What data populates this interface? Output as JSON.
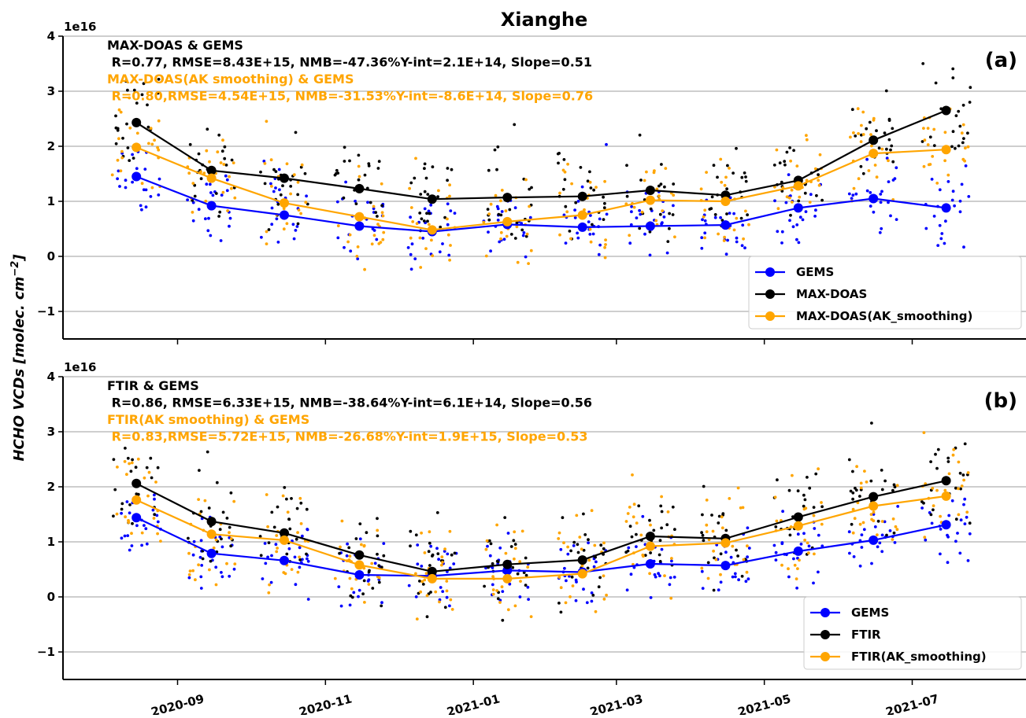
{
  "figure": {
    "title": "Xianghe",
    "ylabel_main": "HCHO VCDs [molec. cm",
    "ylabel_sup": "−2",
    "ylabel_end": "]",
    "exponent_label": "1e16"
  },
  "chart_data": [
    {
      "type": "line",
      "panel_label": "(a)",
      "ylim": [
        -1.5,
        4
      ],
      "yticks": [
        -1,
        0,
        1,
        2,
        3,
        4
      ],
      "ytick_labels": [
        "−1",
        "0",
        "1",
        "2",
        "3",
        "4"
      ],
      "grid": "horizontal",
      "legend_position": "lower-right",
      "annotations": [
        {
          "text": "MAX-DOAS & GEMS",
          "color": "#000000"
        },
        {
          "text": " R=0.77, RMSE=8.43E+15, NMB=-47.36%Y-int=2.1E+14, Slope=0.51",
          "color": "#000000"
        },
        {
          "text": "MAX-DOAS(AK smoothing) & GEMS",
          "color": "#FFA500"
        },
        {
          "text": " R=0.80,RMSE=4.54E+15, NMB=-31.53%Y-int=-8.6E+14, Slope=0.76",
          "color": "#FFA500"
        }
      ],
      "x": [
        "2020-08-15",
        "2020-09-15",
        "2020-10-15",
        "2020-11-15",
        "2020-12-15",
        "2021-01-15",
        "2021-02-15",
        "2021-03-15",
        "2021-04-15",
        "2021-05-15",
        "2021-06-15",
        "2021-07-15"
      ],
      "series": [
        {
          "name": "GEMS",
          "color": "#0000FF",
          "values": [
            1.45,
            0.92,
            0.75,
            0.55,
            0.45,
            0.58,
            0.53,
            0.55,
            0.57,
            0.88,
            1.05,
            0.88
          ]
        },
        {
          "name": "MAX-DOAS",
          "color": "#000000",
          "values": [
            2.43,
            1.56,
            1.42,
            1.23,
            1.04,
            1.07,
            1.09,
            1.2,
            1.11,
            1.38,
            2.11,
            2.65
          ]
        },
        {
          "name": "MAX-DOAS(AK_smoothing)",
          "color": "#FFA500",
          "values": [
            1.98,
            1.42,
            0.97,
            0.72,
            0.48,
            0.63,
            0.75,
            1.02,
            1.0,
            1.28,
            1.87,
            1.94
          ]
        }
      ]
    },
    {
      "type": "line",
      "panel_label": "(b)",
      "ylim": [
        -1.5,
        4
      ],
      "yticks": [
        -1,
        0,
        1,
        2,
        3,
        4
      ],
      "ytick_labels": [
        "−1",
        "0",
        "1",
        "2",
        "3",
        "4"
      ],
      "grid": "horizontal",
      "legend_position": "lower-right",
      "annotations": [
        {
          "text": "FTIR & GEMS",
          "color": "#000000"
        },
        {
          "text": " R=0.86, RMSE=6.33E+15, NMB=-38.64%Y-int=6.1E+14, Slope=0.56",
          "color": "#000000"
        },
        {
          "text": "FTIR(AK smoothing) & GEMS",
          "color": "#FFA500"
        },
        {
          "text": " R=0.83,RMSE=5.72E+15, NMB=-26.68%Y-int=1.9E+15, Slope=0.53",
          "color": "#FFA500"
        }
      ],
      "x": [
        "2020-08-15",
        "2020-09-15",
        "2020-10-15",
        "2020-11-15",
        "2020-12-15",
        "2021-01-15",
        "2021-02-15",
        "2021-03-15",
        "2021-04-15",
        "2021-05-15",
        "2021-06-15",
        "2021-07-15"
      ],
      "series": [
        {
          "name": "GEMS",
          "color": "#0000FF",
          "values": [
            1.44,
            0.79,
            0.66,
            0.4,
            0.38,
            0.48,
            0.45,
            0.6,
            0.57,
            0.83,
            1.03,
            1.31
          ]
        },
        {
          "name": "FTIR",
          "color": "#000000",
          "values": [
            2.06,
            1.37,
            1.16,
            0.76,
            0.46,
            0.59,
            0.67,
            1.1,
            1.06,
            1.45,
            1.82,
            2.11
          ]
        },
        {
          "name": "FTIR(AK_smoothing)",
          "color": "#FFA500",
          "values": [
            1.76,
            1.14,
            1.03,
            0.58,
            0.33,
            0.33,
            0.42,
            0.92,
            0.98,
            1.29,
            1.65,
            1.83
          ]
        }
      ]
    }
  ],
  "x_axis": {
    "ticks": [
      "2020-09-01",
      "2020-11-01",
      "2021-01-01",
      "2021-03-01",
      "2021-05-01",
      "2021-07-01"
    ],
    "tick_labels": [
      "2020-09",
      "2020-11",
      "2021-01",
      "2021-03",
      "2021-05",
      "2021-07"
    ]
  }
}
